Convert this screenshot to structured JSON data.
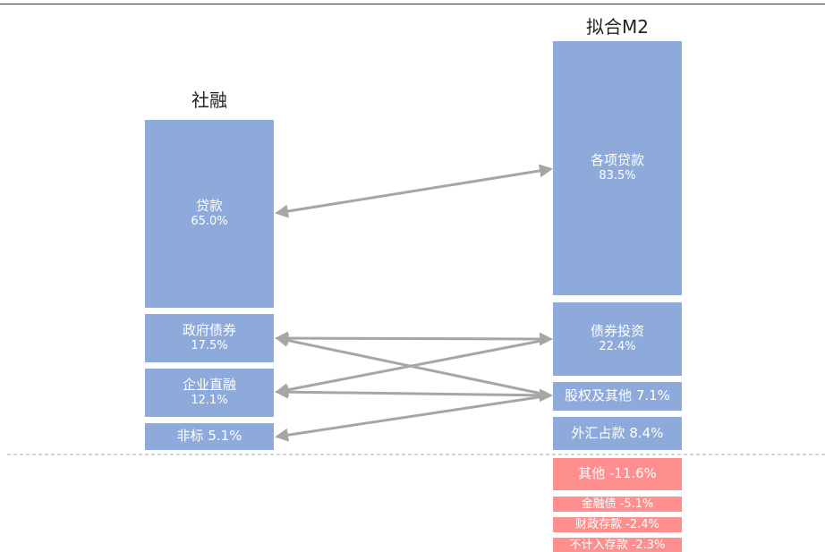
{
  "titles": {
    "left": "社融",
    "right": "拟合M2"
  },
  "colors": {
    "blue": "#8eaadb",
    "red": "#ff8f8f",
    "arrow": "#a6a6a6",
    "baseline": "#aaaaaa"
  },
  "left": {
    "loans": {
      "name": "贷款",
      "value": "65.0%"
    },
    "gov_bonds": {
      "name": "政府债券",
      "value": "17.5%"
    },
    "corp_financing": {
      "name": "企业直融",
      "value": "12.1%"
    },
    "non_standard": {
      "label": "非标 5.1%"
    }
  },
  "right": {
    "all_loans": {
      "name": "各项贷款",
      "value": "83.5%"
    },
    "bond_investment": {
      "name": "债券投资",
      "value": "22.4%"
    },
    "equity_other": {
      "label": "股权及其他 7.1%"
    },
    "fx_holding": {
      "label": "外汇占款 8.4%"
    },
    "other": {
      "label": "其他 -11.6%"
    },
    "financial_bonds": {
      "label": "金融债 -5.1%"
    },
    "fiscal_deposits": {
      "label": "财政存款 -2.4%"
    },
    "non_m2_deposits": {
      "label": "不计入存款 -2.3%"
    }
  }
}
